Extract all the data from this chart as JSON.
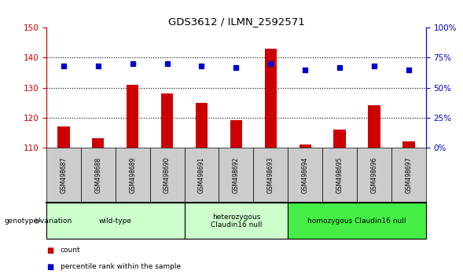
{
  "title": "GDS3612 / ILMN_2592571",
  "samples": [
    "GSM498687",
    "GSM498688",
    "GSM498689",
    "GSM498690",
    "GSM498691",
    "GSM498692",
    "GSM498693",
    "GSM498694",
    "GSM498695",
    "GSM498696",
    "GSM498697"
  ],
  "counts": [
    117,
    113,
    131,
    128,
    125,
    119,
    143,
    111,
    116,
    124,
    112
  ],
  "percentile_ranks": [
    68,
    68,
    70,
    70,
    68,
    67,
    70,
    65,
    67,
    68,
    65
  ],
  "groups": [
    {
      "label": "wild-type",
      "indices": [
        0,
        1,
        2,
        3
      ],
      "color": "#ccffcc",
      "edge": "#aaddaa"
    },
    {
      "label": "heterozygous\nClaudin16 null",
      "indices": [
        4,
        5,
        6
      ],
      "color": "#ccffcc",
      "edge": "#aaddaa"
    },
    {
      "label": "homozygous Claudin16 null",
      "indices": [
        7,
        8,
        9,
        10
      ],
      "color": "#44ee44",
      "edge": "#22bb22"
    }
  ],
  "ylim_left": [
    110,
    150
  ],
  "ylim_right": [
    0,
    100
  ],
  "yticks_left": [
    110,
    120,
    130,
    140,
    150
  ],
  "yticks_right": [
    0,
    25,
    50,
    75,
    100
  ],
  "bar_color": "#cc0000",
  "dot_color": "#0000cc",
  "left_axis_color": "#cc0000",
  "right_axis_color": "#0000cc",
  "sample_box_color": "#cccccc",
  "legend_items": [
    {
      "color": "#cc0000",
      "label": "count"
    },
    {
      "color": "#0000cc",
      "label": "percentile rank within the sample"
    }
  ]
}
